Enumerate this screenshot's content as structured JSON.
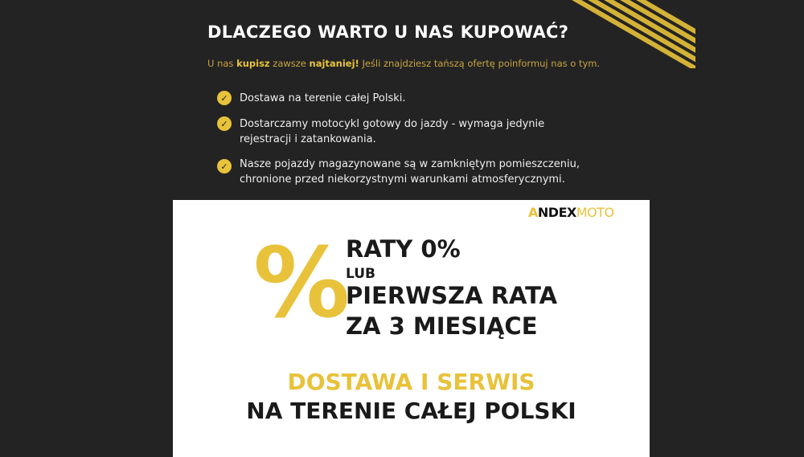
{
  "header": {
    "title": "DLACZEGO WARTO U NAS KUPOWAĆ?"
  },
  "subtitle": {
    "p1": "U nas ",
    "b1": "kupisz",
    "p2": " zawsze ",
    "b2": "najtaniej!",
    "p3": " Jeśli znajdziesz tańszą ofertę poinformuj nas o tym."
  },
  "benefits": [
    {
      "line1": "Dostawa na terenie całej Polski.",
      "line2": ""
    },
    {
      "line1": "Dostarczamy motocykl gotowy do jazdy - wymaga jedynie",
      "line2": "rejestracji i zatankowania."
    },
    {
      "line1": "Nasze pojazdy magazynowane są w zamkniętym pomieszczeniu,",
      "line2": "chronione przed niekorzystnymi warunkami atmosferycznymi."
    }
  ],
  "banner": {
    "logo": {
      "a": "A",
      "rest": "NDEX",
      "moto": "MOTO"
    },
    "percent_symbol": "%",
    "line1": "RATY 0%",
    "line2": "LUB",
    "line3": "PIERWSZA RATA",
    "line4": "ZA 3 MIESIĄCE",
    "delivery1": "DOSTAWA I SERWIS",
    "delivery2": "NA TERENIE CAŁEJ POLSKI"
  },
  "colors": {
    "accent": "#e8c23a",
    "background": "#232323"
  },
  "icons": {
    "check": "check-circle-icon"
  }
}
